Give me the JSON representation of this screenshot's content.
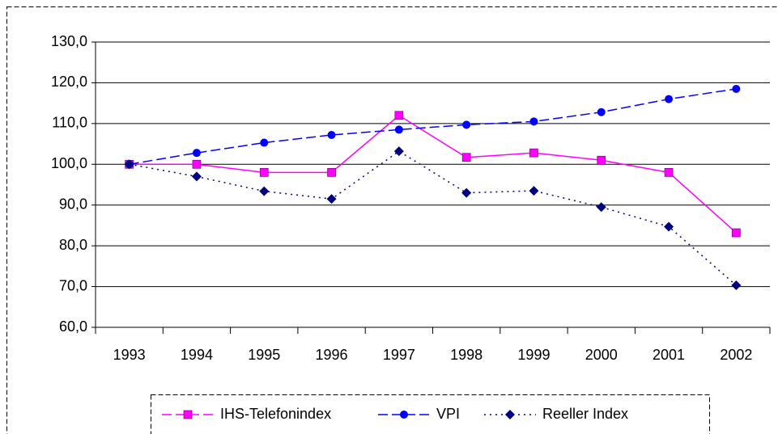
{
  "chart_data": {
    "type": "line",
    "categories": [
      "1993",
      "1994",
      "1995",
      "1996",
      "1997",
      "1998",
      "1999",
      "2000",
      "2001",
      "2002"
    ],
    "series": [
      {
        "name": "IHS-Telefonindex",
        "color": "#ff00ff",
        "marker": "square",
        "dash": "solid",
        "values": [
          100,
          100,
          98,
          98,
          112,
          101.7,
          102.8,
          101,
          98,
          83.2
        ]
      },
      {
        "name": "VPI",
        "color": "#0000ff",
        "marker": "circle",
        "dash": "dash",
        "values": [
          100,
          102.8,
          105.3,
          107.2,
          108.5,
          109.7,
          110.5,
          112.8,
          116,
          118.5
        ]
      },
      {
        "name": "Reeller Index",
        "color": "#000080",
        "marker": "diamond",
        "dash": "dot",
        "values": [
          100,
          97,
          93.4,
          91.5,
          103.2,
          93,
          93.5,
          89.5,
          84.7,
          70.3
        ]
      }
    ],
    "ylim": [
      60,
      130
    ],
    "yticks": [
      {
        "value": 60,
        "label": "60,0"
      },
      {
        "value": 70,
        "label": "70,0"
      },
      {
        "value": 80,
        "label": "80,0"
      },
      {
        "value": 90,
        "label": "90,0"
      },
      {
        "value": 100,
        "label": "100,0"
      },
      {
        "value": 110,
        "label": "110,0"
      },
      {
        "value": 120,
        "label": "120,0"
      },
      {
        "value": 130,
        "label": "130,0"
      }
    ],
    "grid": true,
    "legend": "bottom"
  }
}
